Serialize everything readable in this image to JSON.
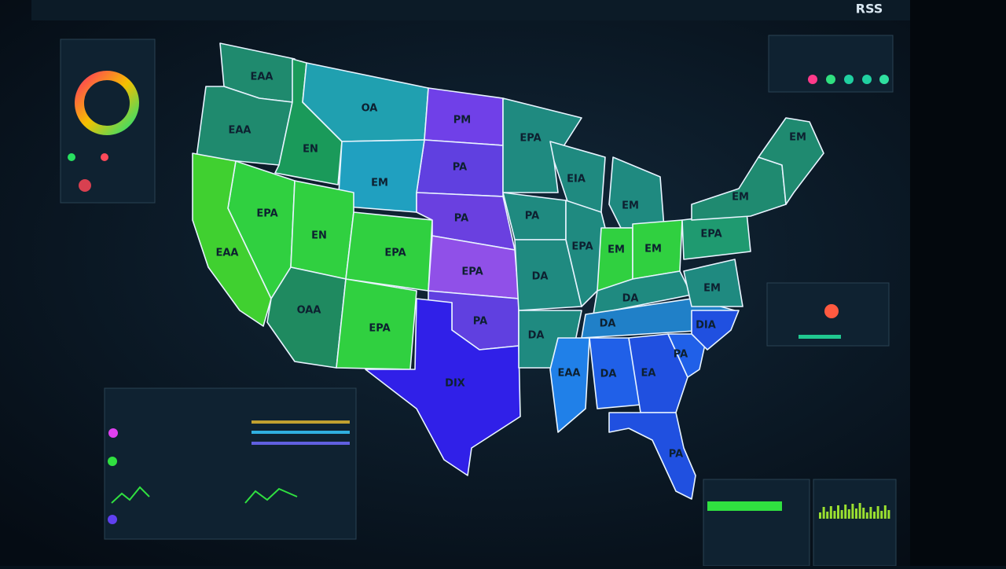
{
  "header": {
    "badge": "RSS"
  },
  "map": {
    "states": [
      {
        "label": "EAA"
      },
      {
        "label": "EAA"
      },
      {
        "label": "EN"
      },
      {
        "label": "OA"
      },
      {
        "label": "PM"
      },
      {
        "label": "PA"
      },
      {
        "label": "EM"
      },
      {
        "label": "EPA"
      },
      {
        "label": "EN"
      },
      {
        "label": "EPA"
      },
      {
        "label": "EAA"
      },
      {
        "label": "PA"
      },
      {
        "label": "EPA"
      },
      {
        "label": "OAA"
      },
      {
        "label": "EPA"
      },
      {
        "label": "PA"
      },
      {
        "label": "DIX"
      },
      {
        "label": "EPA"
      },
      {
        "label": "PA"
      },
      {
        "label": "DA"
      },
      {
        "label": "DA"
      },
      {
        "label": "EIA"
      },
      {
        "label": "EPA"
      },
      {
        "label": "EM"
      },
      {
        "label": "EM"
      },
      {
        "label": "EM"
      },
      {
        "label": "DA"
      },
      {
        "label": "DA"
      },
      {
        "label": "EAA"
      },
      {
        "label": "DA"
      },
      {
        "label": "EA"
      },
      {
        "label": "PA"
      },
      {
        "label": "DIA"
      },
      {
        "label": "EM"
      },
      {
        "label": "EPA"
      },
      {
        "label": "EM"
      },
      {
        "label": "EM"
      },
      {
        "label": "PA"
      }
    ]
  }
}
